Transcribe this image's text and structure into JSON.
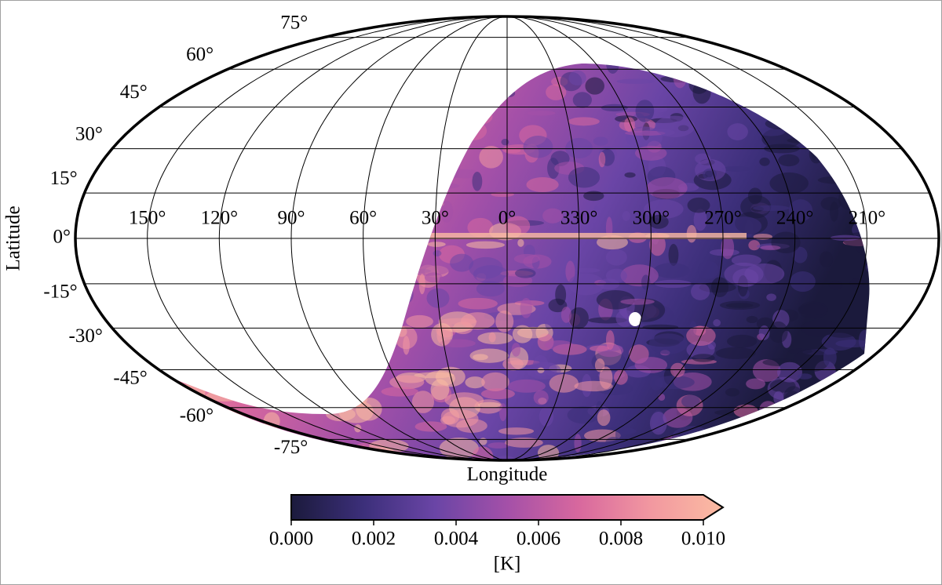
{
  "chart_data": {
    "type": "mollweide",
    "xlabel": "Longitude",
    "ylabel": "Latitude",
    "grid": true,
    "xticks": [
      {
        "value": 150,
        "label": "150°"
      },
      {
        "value": 120,
        "label": "120°"
      },
      {
        "value": 90,
        "label": "90°"
      },
      {
        "value": 60,
        "label": "60°"
      },
      {
        "value": 30,
        "label": "30°"
      },
      {
        "value": 0,
        "label": "0°"
      },
      {
        "value": 330,
        "label": "330°"
      },
      {
        "value": 300,
        "label": "300°"
      },
      {
        "value": 270,
        "label": "270°"
      },
      {
        "value": 240,
        "label": "240°"
      },
      {
        "value": 210,
        "label": "210°"
      }
    ],
    "yticks": [
      {
        "value": 75,
        "label": "75°"
      },
      {
        "value": 60,
        "label": "60°"
      },
      {
        "value": 45,
        "label": "45°"
      },
      {
        "value": 30,
        "label": "30°"
      },
      {
        "value": 15,
        "label": "15°"
      },
      {
        "value": 0,
        "label": "0°"
      },
      {
        "value": -15,
        "label": "-15°"
      },
      {
        "value": -30,
        "label": "-30°"
      },
      {
        "value": -45,
        "label": "-45°"
      },
      {
        "value": -60,
        "label": "-60°"
      },
      {
        "value": -75,
        "label": "-75°"
      }
    ],
    "colorbar": {
      "label": "[K]",
      "lim": [
        0,
        0.01
      ],
      "extend": "max",
      "ticks": [
        {
          "value": 0,
          "label": "0.000"
        },
        0.002,
        0.004,
        0.006,
        0.008,
        {
          "value": 0.01,
          "label": "0.010"
        }
      ],
      "colormap": [
        "#1b1a3c",
        "#3c2f7a",
        "#6a45a6",
        "#a450a8",
        "#d8689e",
        "#f298a0",
        "#fbbca2"
      ]
    }
  }
}
